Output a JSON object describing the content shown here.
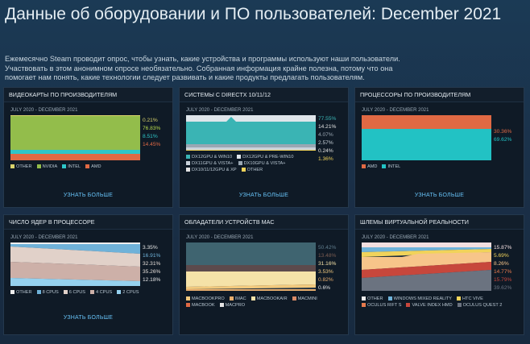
{
  "header": {
    "title": "Данные об оборудовании и ПО пользователей: December 2021",
    "intro_lines": [
      "Ежемесячно Steam проводит опрос, чтобы узнать, какие устройства и программы используют наши пользователи.",
      "Участвовать в этом анонимном опросе необязательно. Собранная информация крайне полезна, потому что она",
      "помогает нам понять, какие технологии следует развивать и какие продукты предлагать пользователям."
    ]
  },
  "common": {
    "period": "JULY 2020 - DECEMBER 2021",
    "learn_more": "УЗНАТЬ БОЛЬШЕ"
  },
  "colors": {
    "nvidia": "#93bd4b",
    "amd": "#e06944",
    "intel": "#2ec6c8",
    "other_gpu": "#d9d36c",
    "dx12_win10": "#3ab4b4",
    "cpu_amd": "#e06944",
    "cpu_intel": "#22c2c4",
    "mac_macbookpro": "#f1c97e",
    "mac_imac": "#e7ad6d",
    "mac_macbookair": "#f5e2a8",
    "vr_quest2": "#6b7380",
    "vr_valve": "#c7473c",
    "vr_rift_s": "#e77a4d"
  },
  "panels": {
    "gpu": {
      "title": "ВИДЕОКАРТЫ ПО ПРОИЗВОДИТЕЛЯМ",
      "values": [
        {
          "text": "0.21%",
          "color": "#d9d36c"
        },
        {
          "text": "76.83%",
          "color": "#b9dc4c"
        },
        {
          "text": "8.51%",
          "color": "#2ec6c8"
        },
        {
          "text": "14.45%",
          "color": "#e06944"
        }
      ],
      "legend": [
        {
          "label": "OTHER",
          "color": "#d9d36c"
        },
        {
          "label": "NVIDIA",
          "color": "#93bd4b"
        },
        {
          "label": "INTEL",
          "color": "#2ec6c8"
        },
        {
          "label": "AMD",
          "color": "#e06944"
        }
      ]
    },
    "directx": {
      "title": "СИСТЕМЫ С DIRECTX 10/11/12",
      "values": [
        {
          "text": "77.55%",
          "color": "#3ab4b4"
        },
        {
          "text": "14.21%",
          "color": "#e4e4e4"
        },
        {
          "text": "4.07%",
          "color": "#9aa7b3"
        },
        {
          "text": "2.57%",
          "color": "#c9d2da"
        },
        {
          "text": "0.24%",
          "color": "#e4e4e4"
        },
        {
          "text": "1.36%",
          "color": "#f1d35a"
        }
      ],
      "legend": [
        {
          "label": "DX12GPU & WIN10",
          "color": "#3ab4b4"
        },
        {
          "label": "DX12GPU & PRE-WIN10",
          "color": "#dfe5ea"
        },
        {
          "label": "DX11GPU & VISTA+",
          "color": "#c9d2da"
        },
        {
          "label": "DX10GPU & VISTA+",
          "color": "#9aa7b3"
        },
        {
          "label": "DX10/11/12GPU & XP",
          "color": "#e4e4e4"
        },
        {
          "label": "OTHER",
          "color": "#f1d35a"
        }
      ]
    },
    "cpu": {
      "title": "ПРОЦЕССОРЫ ПО ПРОИЗВОДИТЕЛЯМ",
      "values": [
        {
          "text": "30.36%",
          "color": "#e06944"
        },
        {
          "text": "69.62%",
          "color": "#22c2c4"
        }
      ],
      "legend": [
        {
          "label": "AMD",
          "color": "#e06944"
        },
        {
          "label": "INTEL",
          "color": "#22c2c4"
        }
      ]
    },
    "cores": {
      "title": "ЧИСЛО ЯДЕР В ПРОЦЕССОРЕ",
      "values": [
        {
          "text": "3.35%",
          "color": "#e4e4e4"
        },
        {
          "text": "16.91%",
          "color": "#6fb2d9"
        },
        {
          "text": "32.31%",
          "color": "#e4ddd8"
        },
        {
          "text": "35.26%",
          "color": "#e4ddd8"
        },
        {
          "text": "12.18%",
          "color": "#e4e4e4"
        }
      ],
      "legend": [
        {
          "label": "OTHER",
          "color": "#eeeeee"
        },
        {
          "label": "8 CPUS",
          "color": "#6fb2d9"
        },
        {
          "label": "6 CPUS",
          "color": "#e1d1c9"
        },
        {
          "label": "4 CPUS",
          "color": "#cdb0a8"
        },
        {
          "label": "2 CPUS",
          "color": "#95d1ef"
        }
      ]
    },
    "mac": {
      "title": "ОБЛАДАТЕЛИ УСТРОЙСТВ MAC",
      "values": [
        {
          "text": "50.42%",
          "color": "#5f7c8c"
        },
        {
          "text": "13.48%",
          "color": "#7a5c52"
        },
        {
          "text": "31.16%",
          "color": "#f5e2a8"
        },
        {
          "text": "3.53%",
          "color": "#f1c97e"
        },
        {
          "text": "0.82%",
          "color": "#e7ad6d"
        },
        {
          "text": "0.6%",
          "color": "#e4e4e4"
        }
      ],
      "legend": [
        {
          "label": "MACBOOKPRO",
          "color": "#f1c97e"
        },
        {
          "label": "IMAC",
          "color": "#e7ad6d"
        },
        {
          "label": "MACBOOKAIR",
          "color": "#f5e2a8"
        },
        {
          "label": "MACMINI",
          "color": "#d88a66"
        },
        {
          "label": "MACBOOK",
          "color": "#e06944"
        },
        {
          "label": "MACPRO",
          "color": "#e4e4e4"
        }
      ]
    },
    "vr": {
      "title": "ШЛЕМЫ ВИРТУАЛЬНОЙ РЕАЛЬНОСТИ",
      "values": [
        {
          "text": "15.87%",
          "color": "#f3dfe0"
        },
        {
          "text": "5.69%",
          "color": "#f1d35a"
        },
        {
          "text": "8.26%",
          "color": "#f7c58a"
        },
        {
          "text": "14.77%",
          "color": "#e77a4d"
        },
        {
          "text": "15.79%",
          "color": "#c7473c"
        },
        {
          "text": "39.62%",
          "color": "#6b7380"
        }
      ],
      "legend": [
        {
          "label": "OTHER",
          "color": "#eeeeee"
        },
        {
          "label": "WINDOWS MIXED REALITY",
          "color": "#6fb2d9"
        },
        {
          "label": "HTC VIVE",
          "color": "#f1d35a"
        },
        {
          "label": "OCULUS RIFT S",
          "color": "#e77a4d"
        },
        {
          "label": "VALVE INDEX HMD",
          "color": "#c7473c"
        },
        {
          "label": "OCULUS QUEST 2",
          "color": "#6b7380"
        }
      ]
    }
  }
}
